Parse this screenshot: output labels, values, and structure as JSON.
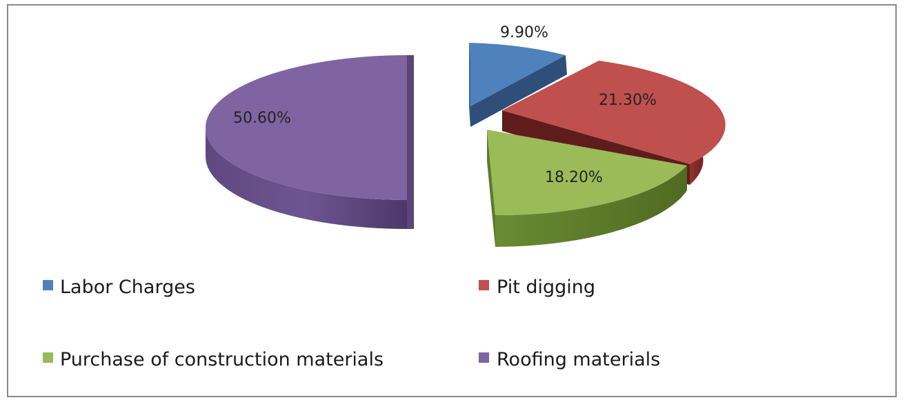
{
  "chart_data": {
    "type": "pie",
    "style": "3d-exploded",
    "slices": [
      {
        "name": "Labor Charges",
        "value": 9.9,
        "label": "9.90%",
        "color": "#4F81BD"
      },
      {
        "name": "Pit digging",
        "value": 21.3,
        "label": "21.30%",
        "color": "#C0504D"
      },
      {
        "name": "Purchase of construction materials",
        "value": 18.2,
        "label": "18.20%",
        "color": "#9BBB59"
      },
      {
        "name": "Roofing materials",
        "value": 50.6,
        "label": "50.60%",
        "color": "#8064A2"
      }
    ],
    "legend": {
      "position": "bottom",
      "entries": [
        "Labor Charges",
        "Pit digging",
        "Purchase of construction materials",
        "Roofing materials"
      ]
    }
  }
}
